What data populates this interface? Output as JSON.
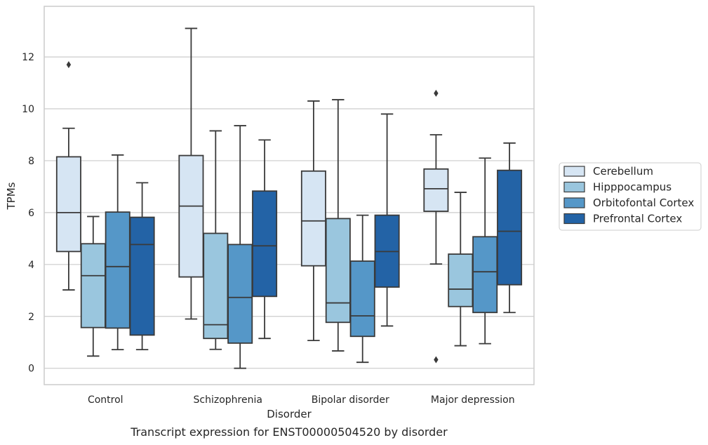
{
  "caption": "Transcript expression for ENST00000504520 by disorder",
  "colors": {
    "Cerebellum": "#d6e5f3",
    "Hipppocampus": "#9ac6de",
    "Orbitofontal Cortex": "#5597c8",
    "Prefrontal Cortex": "#2363a6",
    "edge": "#3a3a3a",
    "grid": "#cccccc",
    "frame": "#cccccc"
  },
  "chart_data": {
    "type": "box",
    "title": "",
    "xlabel": "Disorder",
    "ylabel": "TPMs",
    "ylim": [
      -0.63,
      13.95
    ],
    "yticks": [
      0,
      2,
      4,
      6,
      8,
      10,
      12
    ],
    "ytick_labels": [
      "0",
      "2",
      "4",
      "6",
      "8",
      "10",
      "12"
    ],
    "categories": [
      "Control",
      "Schizophrenia",
      "Bipolar disorder",
      "Major depression"
    ],
    "grid": true,
    "legend_position": "right",
    "series": [
      {
        "name": "Cerebellum",
        "boxes": [
          {
            "whislo": 3.02,
            "q1": 4.5,
            "median": 6.0,
            "q3": 8.15,
            "whishi": 9.25,
            "fliers": [
              11.7
            ]
          },
          {
            "whislo": 1.9,
            "q1": 3.52,
            "median": 6.25,
            "q3": 8.2,
            "whishi": 13.1,
            "fliers": []
          },
          {
            "whislo": 1.07,
            "q1": 3.95,
            "median": 5.68,
            "q3": 7.6,
            "whishi": 10.3,
            "fliers": []
          },
          {
            "whislo": 4.02,
            "q1": 6.05,
            "median": 6.92,
            "q3": 7.68,
            "whishi": 9.0,
            "fliers": [
              10.6,
              0.33
            ]
          }
        ]
      },
      {
        "name": "Hipppocampus",
        "boxes": [
          {
            "whislo": 0.47,
            "q1": 1.57,
            "median": 3.57,
            "q3": 4.8,
            "whishi": 5.85,
            "fliers": []
          },
          {
            "whislo": 0.73,
            "q1": 1.15,
            "median": 1.68,
            "q3": 5.2,
            "whishi": 9.15,
            "fliers": []
          },
          {
            "whislo": 0.67,
            "q1": 1.77,
            "median": 2.52,
            "q3": 5.77,
            "whishi": 10.35,
            "fliers": []
          },
          {
            "whislo": 0.87,
            "q1": 2.38,
            "median": 3.05,
            "q3": 4.4,
            "whishi": 6.78,
            "fliers": []
          }
        ]
      },
      {
        "name": "Orbitofontal Cortex",
        "boxes": [
          {
            "whislo": 0.72,
            "q1": 1.55,
            "median": 3.92,
            "q3": 6.02,
            "whishi": 8.22,
            "fliers": []
          },
          {
            "whislo": 0.0,
            "q1": 0.97,
            "median": 2.73,
            "q3": 4.77,
            "whishi": 9.35,
            "fliers": []
          },
          {
            "whislo": 0.23,
            "q1": 1.23,
            "median": 2.02,
            "q3": 4.13,
            "whishi": 5.9,
            "fliers": []
          },
          {
            "whislo": 0.95,
            "q1": 2.15,
            "median": 3.72,
            "q3": 5.07,
            "whishi": 8.1,
            "fliers": []
          }
        ]
      },
      {
        "name": "Prefrontal Cortex",
        "boxes": [
          {
            "whislo": 0.72,
            "q1": 1.28,
            "median": 4.77,
            "q3": 5.82,
            "whishi": 7.15,
            "fliers": []
          },
          {
            "whislo": 1.15,
            "q1": 2.77,
            "median": 4.72,
            "q3": 6.83,
            "whishi": 8.8,
            "fliers": []
          },
          {
            "whislo": 1.63,
            "q1": 3.13,
            "median": 4.5,
            "q3": 5.9,
            "whishi": 9.8,
            "fliers": []
          },
          {
            "whislo": 2.15,
            "q1": 3.22,
            "median": 5.28,
            "q3": 7.63,
            "whishi": 8.68,
            "fliers": []
          }
        ]
      }
    ]
  }
}
